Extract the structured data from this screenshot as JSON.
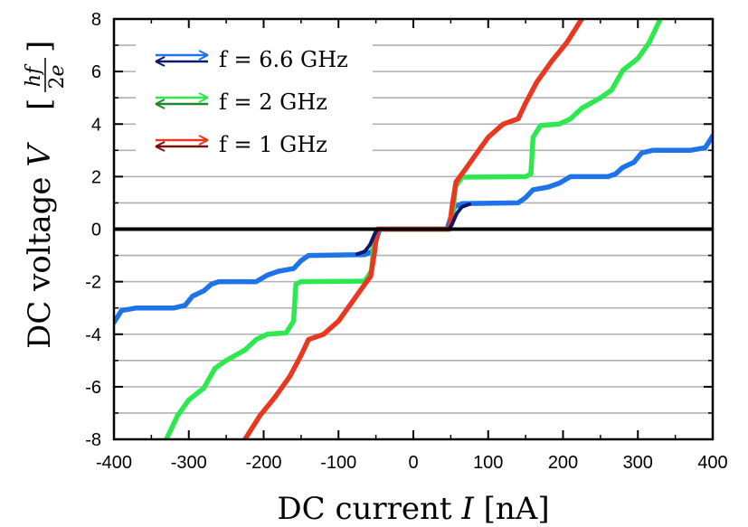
{
  "chart_data": {
    "type": "line",
    "xlabel": "DC current I [nA]",
    "ylabel": "DC voltage V [hf/2e]",
    "xlim": [
      -400,
      400
    ],
    "ylim": [
      -8,
      8
    ],
    "x_ticks": [
      -400,
      -300,
      -200,
      -100,
      0,
      100,
      200,
      300,
      400
    ],
    "y_ticks": [
      -8,
      -6,
      -4,
      -2,
      0,
      2,
      4,
      6,
      8
    ],
    "grid": "horizontal lines at each integer voltage",
    "legend_position": "top-left",
    "series": [
      {
        "name": "f = 6.6 GHz",
        "color": "#1e73e8",
        "points": [
          [
            -400,
            -3.55
          ],
          [
            -390,
            -3.1
          ],
          [
            -370,
            -3.0
          ],
          [
            -320,
            -3.0
          ],
          [
            -305,
            -2.9
          ],
          [
            -295,
            -2.55
          ],
          [
            -280,
            -2.35
          ],
          [
            -270,
            -2.1
          ],
          [
            -260,
            -2.0
          ],
          [
            -210,
            -2.0
          ],
          [
            -195,
            -1.75
          ],
          [
            -180,
            -1.6
          ],
          [
            -160,
            -1.5
          ],
          [
            -150,
            -1.2
          ],
          [
            -140,
            -1.0
          ],
          [
            -65,
            -0.97
          ],
          [
            -55,
            -0.85
          ],
          [
            -50,
            -0.45
          ],
          [
            -45,
            0.0
          ],
          [
            45,
            0.0
          ],
          [
            50,
            0.45
          ],
          [
            55,
            0.85
          ],
          [
            65,
            0.97
          ],
          [
            140,
            1.0
          ],
          [
            150,
            1.2
          ],
          [
            160,
            1.5
          ],
          [
            180,
            1.6
          ],
          [
            195,
            1.75
          ],
          [
            210,
            2.0
          ],
          [
            260,
            2.0
          ],
          [
            270,
            2.1
          ],
          [
            280,
            2.35
          ],
          [
            295,
            2.55
          ],
          [
            305,
            2.9
          ],
          [
            320,
            3.0
          ],
          [
            370,
            3.0
          ],
          [
            390,
            3.1
          ],
          [
            400,
            3.55
          ]
        ]
      },
      {
        "name": "f = 2 GHz",
        "color": "#2ee84f",
        "points": [
          [
            -330,
            -8.0
          ],
          [
            -315,
            -7.1
          ],
          [
            -300,
            -6.5
          ],
          [
            -280,
            -6.05
          ],
          [
            -265,
            -5.3
          ],
          [
            -250,
            -5.0
          ],
          [
            -225,
            -4.6
          ],
          [
            -210,
            -4.2
          ],
          [
            -195,
            -4.0
          ],
          [
            -170,
            -3.95
          ],
          [
            -160,
            -3.5
          ],
          [
            -157,
            -2.1
          ],
          [
            -150,
            -2.0
          ],
          [
            -65,
            -1.98
          ],
          [
            -56,
            -1.6
          ],
          [
            -52,
            -0.3
          ],
          [
            -48,
            0.0
          ],
          [
            48,
            0.0
          ],
          [
            52,
            0.3
          ],
          [
            56,
            1.6
          ],
          [
            65,
            1.98
          ],
          [
            150,
            2.0
          ],
          [
            157,
            2.1
          ],
          [
            160,
            3.5
          ],
          [
            170,
            3.95
          ],
          [
            195,
            4.0
          ],
          [
            210,
            4.2
          ],
          [
            225,
            4.6
          ],
          [
            250,
            5.0
          ],
          [
            265,
            5.3
          ],
          [
            280,
            6.05
          ],
          [
            300,
            6.5
          ],
          [
            315,
            7.1
          ],
          [
            330,
            8.0
          ]
        ]
      },
      {
        "name": "f = 1 GHz",
        "color": "#e83820",
        "points": [
          [
            -225,
            -8.0
          ],
          [
            -205,
            -7.1
          ],
          [
            -185,
            -6.4
          ],
          [
            -165,
            -5.6
          ],
          [
            -150,
            -4.8
          ],
          [
            -140,
            -4.2
          ],
          [
            -120,
            -4.0
          ],
          [
            -100,
            -3.5
          ],
          [
            -85,
            -2.9
          ],
          [
            -70,
            -2.3
          ],
          [
            -57,
            -1.8
          ],
          [
            -52,
            -0.9
          ],
          [
            -48,
            0.0
          ],
          [
            48,
            0.0
          ],
          [
            52,
            0.9
          ],
          [
            57,
            1.8
          ],
          [
            70,
            2.3
          ],
          [
            85,
            2.9
          ],
          [
            100,
            3.5
          ],
          [
            120,
            4.0
          ],
          [
            140,
            4.2
          ],
          [
            150,
            4.8
          ],
          [
            165,
            5.6
          ],
          [
            185,
            6.4
          ],
          [
            205,
            7.1
          ],
          [
            225,
            8.0
          ]
        ]
      },
      {
        "name": "",
        "color": "#0a1a6e",
        "points": [
          [
            -75,
            -0.95
          ],
          [
            -65,
            -0.85
          ],
          [
            -58,
            -0.6
          ],
          [
            -52,
            -0.2
          ],
          [
            -48,
            0.0
          ],
          [
            48,
            0.0
          ],
          [
            52,
            0.2
          ],
          [
            58,
            0.6
          ],
          [
            65,
            0.85
          ],
          [
            75,
            0.95
          ]
        ]
      }
    ],
    "legend": [
      {
        "label": "f = 6.6 GHz",
        "color": "#1e73e8",
        "dark": "#0a1a6e"
      },
      {
        "label": "f = 2 GHz",
        "color": "#2ee84f",
        "dark": "#1a8a2a"
      },
      {
        "label": "f = 1 GHz",
        "color": "#e83820",
        "dark": "#7a1010"
      }
    ]
  }
}
